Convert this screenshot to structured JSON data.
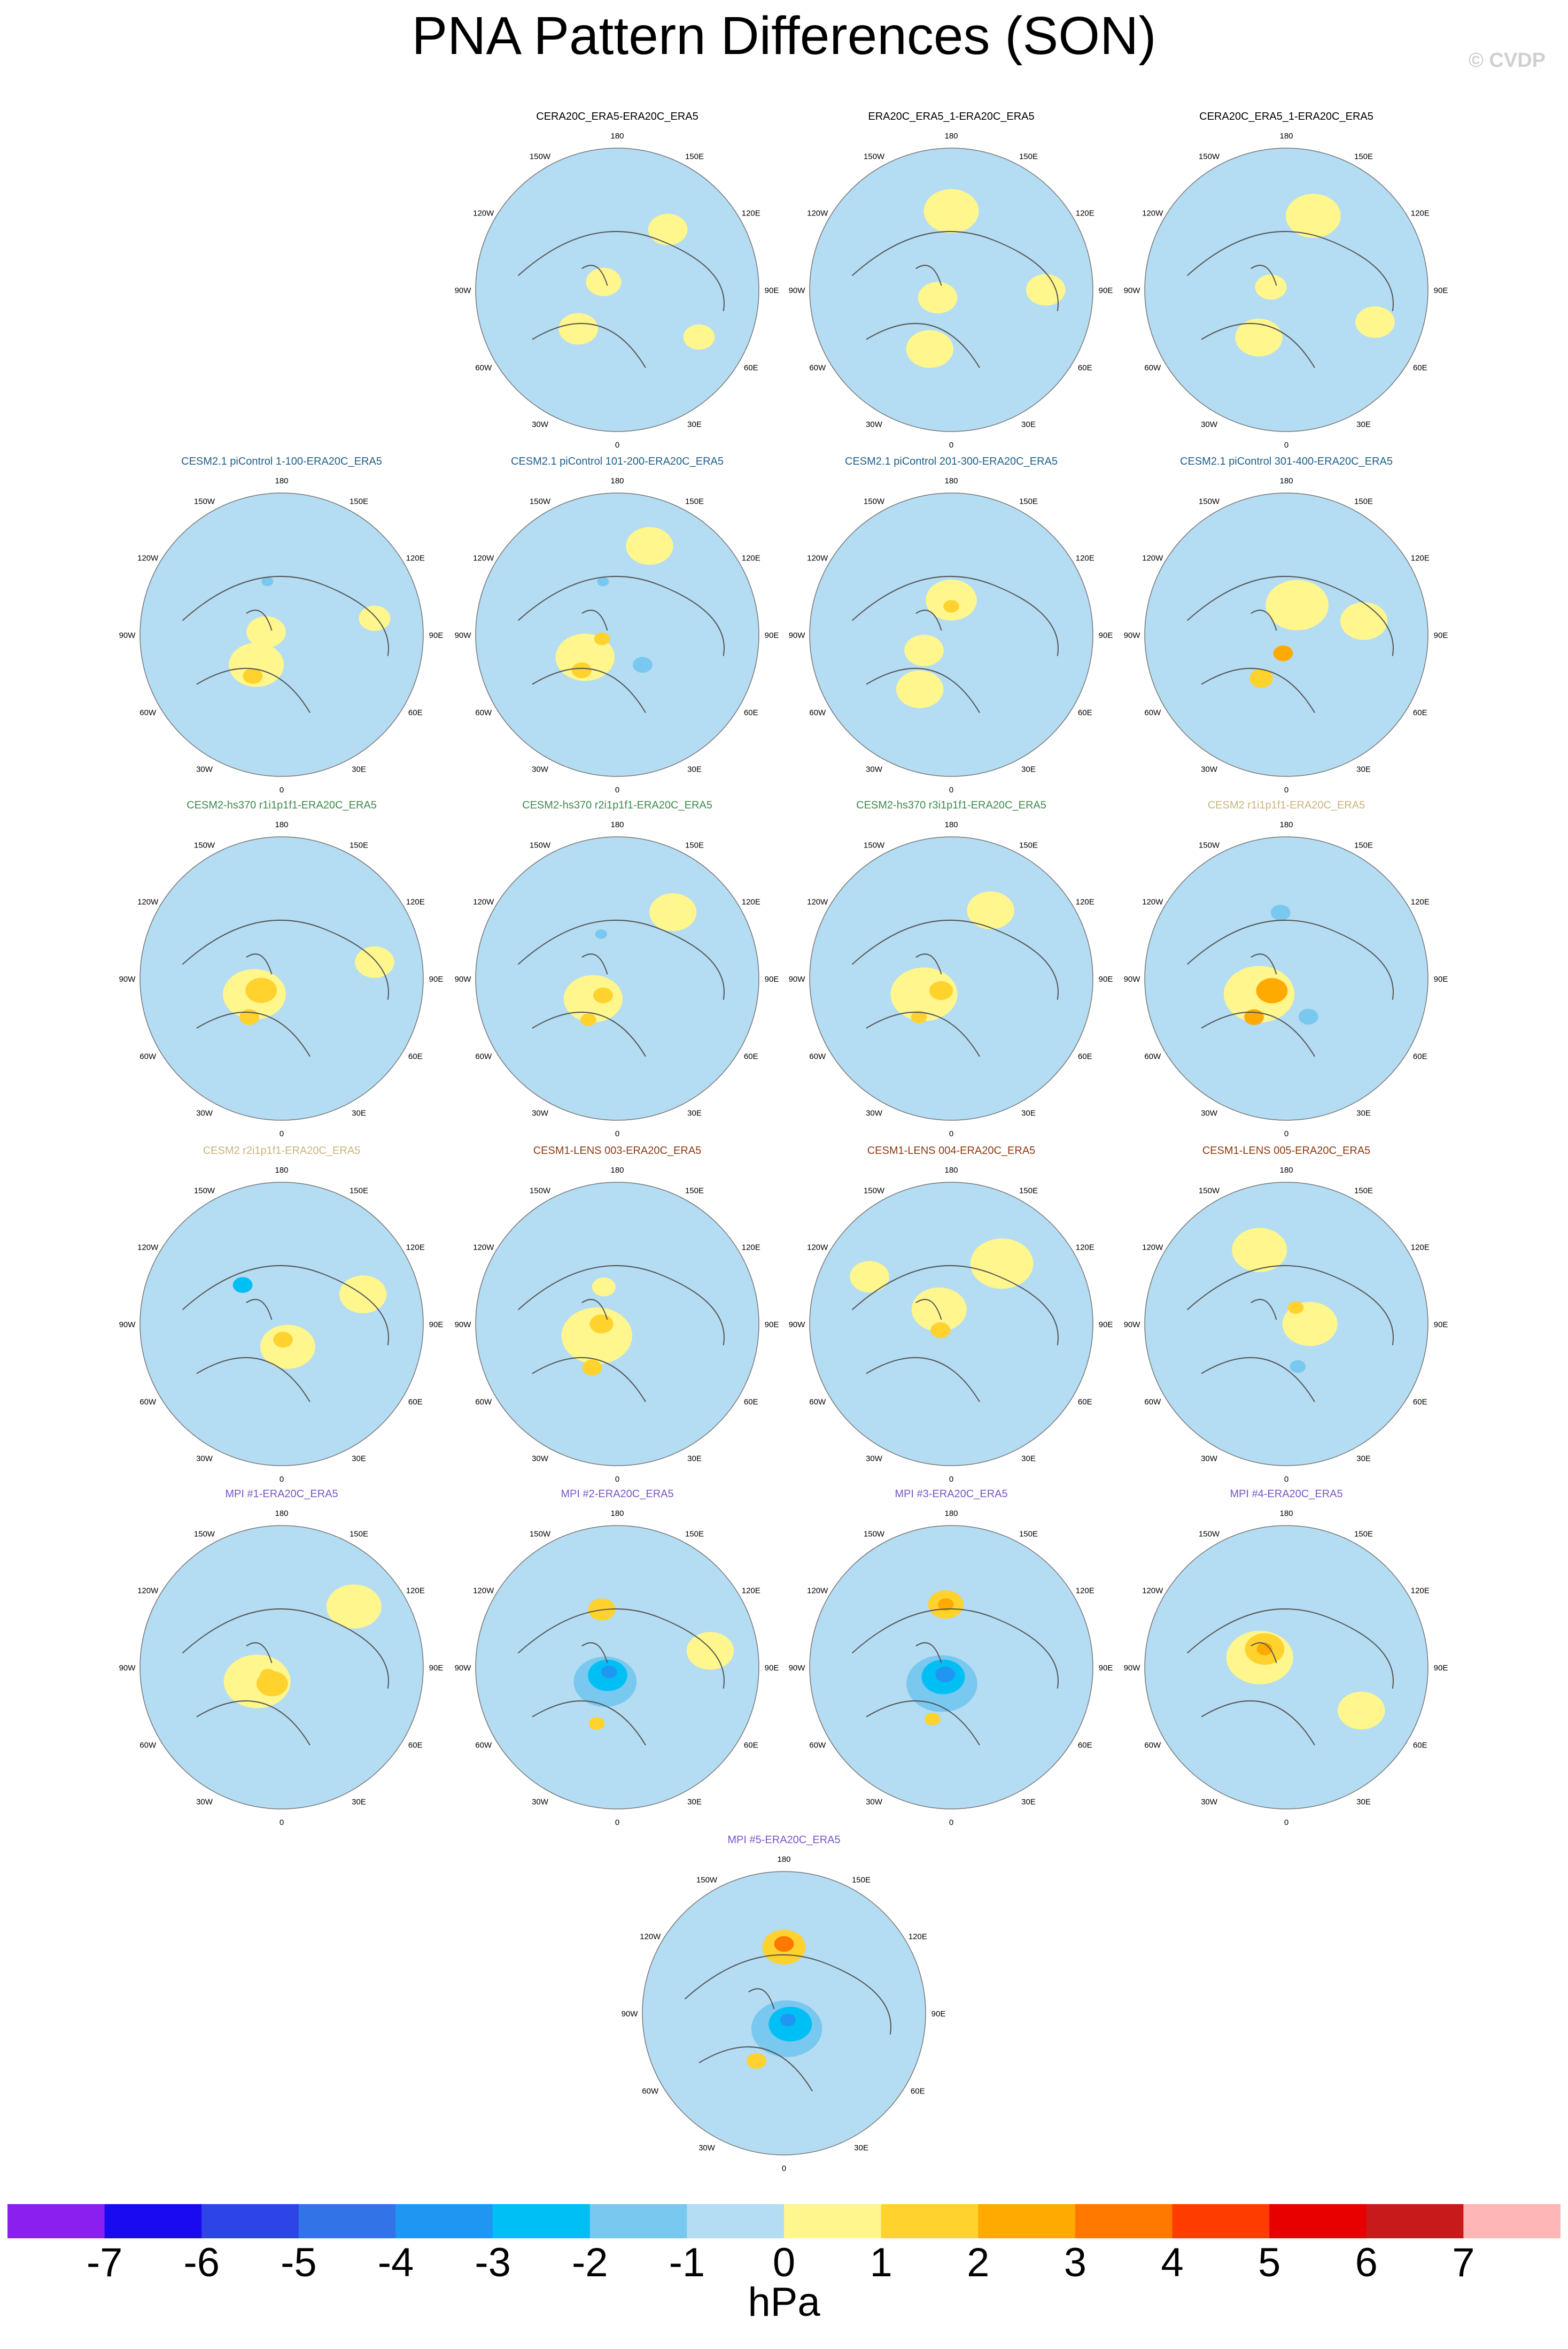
{
  "title": "PNA Pattern Differences (SON)",
  "watermark": "© CVDP",
  "lon_labels": {
    "top": "180",
    "top_left": "150W",
    "top_right": "150E",
    "upper_left": "120W",
    "upper_right": "120E",
    "left": "90W",
    "right": "90E",
    "lower_left": "60W",
    "lower_right": "60E",
    "bottom_left": "30W",
    "bottom_right": "30E",
    "bottom": "0"
  },
  "colors": {
    "title_default": "#000000",
    "cesm2_pic": "#1a5f8a",
    "cesm2_hs370": "#3e8a4e",
    "cesm2_r": "#c8b47a",
    "cesm1_lens": "#8a3a10",
    "mpi": "#7a55c8",
    "land": "#555555"
  },
  "chart_data": {
    "type": "map",
    "projection": "north-polar-stereographic",
    "variable": "PNA pattern difference",
    "unit": "hPa",
    "colorbar": {
      "unit": "hPa",
      "levels": [
        "-7",
        "-6",
        "-5",
        "-4",
        "-3",
        "-2",
        "-1",
        "0",
        "1",
        "2",
        "3",
        "4",
        "5",
        "6",
        "7"
      ],
      "colors": [
        "#8a1ff0",
        "#1a0af0",
        "#2d45e6",
        "#3274e8",
        "#1f97f2",
        "#00bff5",
        "#78c8f0",
        "#b4dcf2",
        "#fff68e",
        "#ffd22d",
        "#ffaa00",
        "#ff7800",
        "#ff3c00",
        "#e80000",
        "#c81a1a",
        "#ffb6b6"
      ]
    },
    "panels": [
      {
        "title": "CERA20C_ERA5-ERA20C_ERA5",
        "group": "default",
        "features": [
          {
            "lon": 240,
            "lat": 80,
            "v": 0.6,
            "s": 9
          },
          {
            "lon": 315,
            "lat": 55,
            "v": 0.5,
            "s": 10
          },
          {
            "lon": 140,
            "lat": 40,
            "v": 0.4,
            "s": 10
          },
          {
            "lon": 60,
            "lat": 30,
            "v": 0.4,
            "s": 8
          }
        ]
      },
      {
        "title": "ERA20C_ERA5_1-ERA20C_ERA5",
        "group": "default",
        "features": [
          {
            "lon": 180,
            "lat": 40,
            "v": 0.6,
            "s": 14
          },
          {
            "lon": 340,
            "lat": 50,
            "v": 0.6,
            "s": 12
          },
          {
            "lon": 300,
            "lat": 80,
            "v": 0.5,
            "s": 10
          },
          {
            "lon": 90,
            "lat": 30,
            "v": 0.5,
            "s": 10
          }
        ]
      },
      {
        "title": "CERA20C_ERA5_1-ERA20C_ERA5",
        "group": "default",
        "features": [
          {
            "lon": 160,
            "lat": 40,
            "v": 0.6,
            "s": 14
          },
          {
            "lon": 330,
            "lat": 55,
            "v": 0.6,
            "s": 12
          },
          {
            "lon": 260,
            "lat": 80,
            "v": 0.5,
            "s": 8
          },
          {
            "lon": 70,
            "lat": 30,
            "v": 0.5,
            "s": 10
          }
        ]
      },
      {
        "title": "CESM2.1 piControl 1-100-ERA20C_ERA5",
        "group": "cesm2_pic",
        "features": [
          {
            "lon": 320,
            "lat": 65,
            "v": 0.7,
            "s": 14
          },
          {
            "lon": 325,
            "lat": 58,
            "v": 1.8,
            "s": 5
          },
          {
            "lon": 260,
            "lat": 80,
            "v": 0.6,
            "s": 10
          },
          {
            "lon": 195,
            "lat": 55,
            "v": -1.4,
            "s": 3
          },
          {
            "lon": 100,
            "lat": 30,
            "v": 0.5,
            "s": 8
          }
        ]
      },
      {
        "title": "CESM2.1 piControl 101-200-ERA20C_ERA5",
        "group": "cesm2_pic",
        "features": [
          {
            "lon": 305,
            "lat": 65,
            "v": 0.7,
            "s": 15
          },
          {
            "lon": 315,
            "lat": 58,
            "v": 1.6,
            "s": 5
          },
          {
            "lon": 285,
            "lat": 80,
            "v": 1.6,
            "s": 4
          },
          {
            "lon": 40,
            "lat": 65,
            "v": -1.4,
            "s": 5
          },
          {
            "lon": 195,
            "lat": 55,
            "v": -1.3,
            "s": 3
          },
          {
            "lon": 160,
            "lat": 30,
            "v": 0.6,
            "s": 12
          }
        ]
      },
      {
        "title": "CESM2.1 piControl 201-300-ERA20C_ERA5",
        "group": "cesm2_pic",
        "features": [
          {
            "lon": 180,
            "lat": 68,
            "v": 0.8,
            "s": 13
          },
          {
            "lon": 180,
            "lat": 72,
            "v": 1.7,
            "s": 4
          },
          {
            "lon": 330,
            "lat": 50,
            "v": 0.7,
            "s": 12
          },
          {
            "lon": 300,
            "lat": 70,
            "v": 0.6,
            "s": 10
          }
        ]
      },
      {
        "title": "CESM2.1 piControl 301-400-ERA20C_ERA5",
        "group": "cesm2_pic",
        "features": [
          {
            "lon": 160,
            "lat": 70,
            "v": 0.7,
            "s": 16
          },
          {
            "lon": 350,
            "lat": 78,
            "v": 2.3,
            "s": 5
          },
          {
            "lon": 330,
            "lat": 58,
            "v": 1.8,
            "s": 6
          },
          {
            "lon": 100,
            "lat": 40,
            "v": 0.6,
            "s": 12
          }
        ]
      },
      {
        "title": "CESM2-hs370 r1i1p1f1-ERA20C_ERA5",
        "group": "cesm2_hs370",
        "features": [
          {
            "lon": 300,
            "lat": 70,
            "v": 0.8,
            "s": 16
          },
          {
            "lon": 300,
            "lat": 75,
            "v": 1.9,
            "s": 8
          },
          {
            "lon": 320,
            "lat": 58,
            "v": 1.8,
            "s": 5
          },
          {
            "lon": 100,
            "lat": 30,
            "v": 0.6,
            "s": 10
          }
        ]
      },
      {
        "title": "CESM2-hs370 r2i1p1f1-ERA20C_ERA5",
        "group": "cesm2_hs370",
        "features": [
          {
            "lon": 310,
            "lat": 70,
            "v": 0.7,
            "s": 15
          },
          {
            "lon": 320,
            "lat": 76,
            "v": 1.7,
            "s": 5
          },
          {
            "lon": 325,
            "lat": 58,
            "v": 1.6,
            "s": 4
          },
          {
            "lon": 200,
            "lat": 60,
            "v": -1.3,
            "s": 3
          },
          {
            "lon": 140,
            "lat": 35,
            "v": 0.5,
            "s": 12
          }
        ]
      },
      {
        "title": "CESM2-hs370 r3i1p1f1-ERA20C_ERA5",
        "group": "cesm2_hs370",
        "features": [
          {
            "lon": 300,
            "lat": 70,
            "v": 0.8,
            "s": 17
          },
          {
            "lon": 320,
            "lat": 80,
            "v": 1.9,
            "s": 6
          },
          {
            "lon": 320,
            "lat": 58,
            "v": 1.7,
            "s": 4
          },
          {
            "lon": 150,
            "lat": 40,
            "v": 0.6,
            "s": 12
          }
        ]
      },
      {
        "title": "CESM2 r1i1p1f1-ERA20C_ERA5",
        "group": "cesm2_r",
        "features": [
          {
            "lon": 300,
            "lat": 70,
            "v": 0.8,
            "s": 18
          },
          {
            "lon": 310,
            "lat": 78,
            "v": 2.2,
            "s": 8
          },
          {
            "lon": 320,
            "lat": 58,
            "v": 2.3,
            "s": 5
          },
          {
            "lon": 185,
            "lat": 48,
            "v": -1.8,
            "s": 5
          },
          {
            "lon": 30,
            "lat": 62,
            "v": -1.8,
            "s": 5
          }
        ]
      },
      {
        "title": "CESM2 r2i1p1f1-ERA20C_ERA5",
        "group": "cesm2_r",
        "features": [
          {
            "lon": 15,
            "lat": 75,
            "v": 0.8,
            "s": 14
          },
          {
            "lon": 5,
            "lat": 80,
            "v": 1.9,
            "s": 5
          },
          {
            "lon": 225,
            "lat": 55,
            "v": -2.2,
            "s": 5
          },
          {
            "lon": 110,
            "lat": 35,
            "v": 0.6,
            "s": 12
          }
        ]
      },
      {
        "title": "CESM1-LENS 003-ERA20C_ERA5",
        "group": "cesm1_lens",
        "features": [
          {
            "lon": 300,
            "lat": 75,
            "v": 0.8,
            "s": 18
          },
          {
            "lon": 270,
            "lat": 80,
            "v": 1.8,
            "s": 6
          },
          {
            "lon": 330,
            "lat": 58,
            "v": 1.7,
            "s": 5
          },
          {
            "lon": 200,
            "lat": 65,
            "v": 0.6,
            "s": 6
          }
        ]
      },
      {
        "title": "CESM1-LENS 004-ERA20C_ERA5",
        "group": "cesm1_lens",
        "features": [
          {
            "lon": 220,
            "lat": 78,
            "v": 0.7,
            "s": 14
          },
          {
            "lon": 300,
            "lat": 82,
            "v": 1.8,
            "s": 5
          },
          {
            "lon": 140,
            "lat": 40,
            "v": 0.6,
            "s": 16
          },
          {
            "lon": 240,
            "lat": 30,
            "v": 0.6,
            "s": 10
          }
        ]
      },
      {
        "title": "CESM1-LENS 005-ERA20C_ERA5",
        "group": "cesm1_lens",
        "features": [
          {
            "lon": 90,
            "lat": 75,
            "v": 0.7,
            "s": 14
          },
          {
            "lon": 150,
            "lat": 78,
            "v": 1.6,
            "s": 4
          },
          {
            "lon": 15,
            "lat": 62,
            "v": -1.5,
            "s": 4
          },
          {
            "lon": 200,
            "lat": 40,
            "v": 0.6,
            "s": 14
          }
        ]
      },
      {
        "title": "MPI #1-ERA20C_ERA5",
        "group": "mpi",
        "features": [
          {
            "lon": 300,
            "lat": 72,
            "v": 0.8,
            "s": 17
          },
          {
            "lon": 330,
            "lat": 78,
            "v": 1.8,
            "s": 8
          },
          {
            "lon": 300,
            "lat": 80,
            "v": 1.8,
            "s": 4
          },
          {
            "lon": 130,
            "lat": 30,
            "v": 0.6,
            "s": 14
          }
        ]
      },
      {
        "title": "MPI #2-ERA20C_ERA5",
        "group": "mpi",
        "features": [
          {
            "lon": 320,
            "lat": 78,
            "v": -1.5,
            "s": 16
          },
          {
            "lon": 310,
            "lat": 82,
            "v": -2.5,
            "s": 10
          },
          {
            "lon": 300,
            "lat": 84,
            "v": -3.4,
            "s": 4
          },
          {
            "lon": 195,
            "lat": 52,
            "v": 1.8,
            "s": 7
          },
          {
            "lon": 340,
            "lat": 52,
            "v": 1.6,
            "s": 4
          },
          {
            "lon": 100,
            "lat": 30,
            "v": 0.6,
            "s": 12
          }
        ]
      },
      {
        "title": "MPI #3-ERA20C_ERA5",
        "group": "mpi",
        "features": [
          {
            "lon": 330,
            "lat": 78,
            "v": -1.6,
            "s": 18
          },
          {
            "lon": 320,
            "lat": 82,
            "v": -2.8,
            "s": 11
          },
          {
            "lon": 320,
            "lat": 84,
            "v": -3.5,
            "s": 5
          },
          {
            "lon": 185,
            "lat": 50,
            "v": 1.8,
            "s": 9
          },
          {
            "lon": 185,
            "lat": 50,
            "v": 2.6,
            "s": 4
          },
          {
            "lon": 340,
            "lat": 55,
            "v": 1.5,
            "s": 4
          }
        ]
      },
      {
        "title": "MPI #4-ERA20C_ERA5",
        "group": "mpi",
        "features": [
          {
            "lon": 250,
            "lat": 72,
            "v": 0.8,
            "s": 17
          },
          {
            "lon": 230,
            "lat": 72,
            "v": 1.9,
            "s": 10
          },
          {
            "lon": 230,
            "lat": 72,
            "v": 2.7,
            "s": 4
          },
          {
            "lon": 60,
            "lat": 35,
            "v": 0.6,
            "s": 12
          }
        ]
      },
      {
        "title": "MPI #5-ERA20C_ERA5",
        "group": "mpi",
        "features": [
          {
            "lon": 10,
            "lat": 80,
            "v": -1.6,
            "s": 18
          },
          {
            "lon": 30,
            "lat": 82,
            "v": -2.6,
            "s": 11
          },
          {
            "lon": 30,
            "lat": 85,
            "v": -3.4,
            "s": 4
          },
          {
            "lon": 180,
            "lat": 48,
            "v": 1.9,
            "s": 11
          },
          {
            "lon": 180,
            "lat": 46,
            "v": 3.2,
            "s": 5
          },
          {
            "lon": 330,
            "lat": 55,
            "v": 1.9,
            "s": 5
          }
        ]
      }
    ]
  }
}
